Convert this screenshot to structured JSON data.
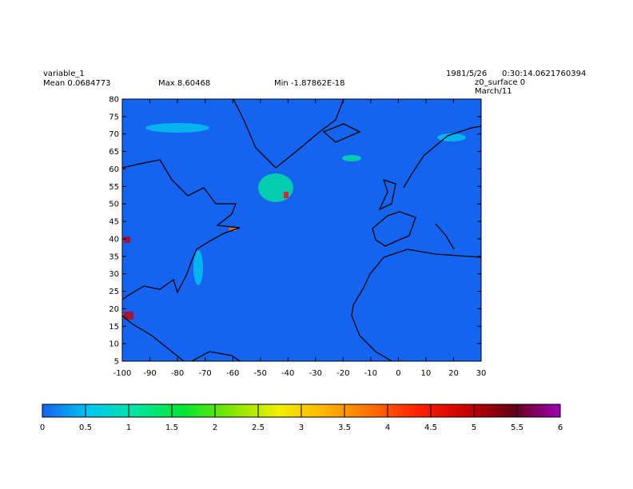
{
  "header": {
    "variable": "variable_1",
    "mean": "Mean 0.0684773",
    "max": "Max 8.60468",
    "min": "Min -1.87862E-18",
    "date": "1981/5/26",
    "time": "0:30:14.0621760394",
    "level": "z0_surface 0",
    "forecast": "March/11"
  },
  "map": {
    "xlim": [
      -100,
      30
    ],
    "ylim": [
      5,
      80
    ],
    "xticks": [
      -100,
      -90,
      -80,
      -70,
      -60,
      -50,
      -40,
      -30,
      -20,
      -10,
      0,
      10,
      20,
      30
    ],
    "yticks": [
      5,
      10,
      15,
      20,
      25,
      30,
      35,
      40,
      45,
      50,
      55,
      60,
      65,
      70,
      75,
      80
    ],
    "background_color": "#1464f0"
  },
  "colorbar": {
    "lim": [
      0,
      6
    ],
    "ticks": [
      0,
      0.5,
      1,
      1.5,
      2,
      2.5,
      3,
      3.5,
      4,
      4.5,
      5,
      5.5,
      6
    ],
    "colors": [
      "#1464f0",
      "#00c8f0",
      "#00e6a0",
      "#00e632",
      "#82e600",
      "#f0f000",
      "#ffb400",
      "#ff6e00",
      "#ff1e00",
      "#c80000",
      "#640014",
      "#a000b4"
    ]
  }
}
